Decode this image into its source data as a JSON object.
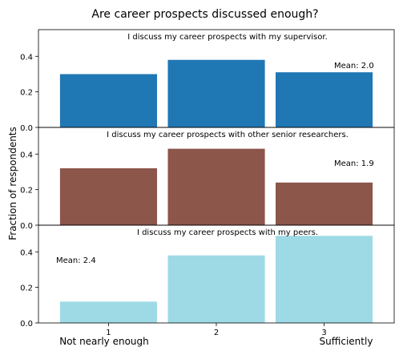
{
  "title": "Are career prospects discussed enough?",
  "ylabel": "Fraction of respondents",
  "x_end_labels": {
    "left": "Not nearly enough",
    "right": "Sufficiently"
  },
  "chart_data": [
    {
      "type": "bar",
      "title": "I discuss my career prospects with my supervisor.",
      "categories": [
        "1",
        "2",
        "3"
      ],
      "values": [
        0.3,
        0.38,
        0.31
      ],
      "color": "#1f77b4",
      "mean_label": "Mean: 2.0",
      "mean_position": "right",
      "ylim": [
        0,
        0.55
      ],
      "yticks": [
        "0.0",
        "0.2",
        "0.4"
      ]
    },
    {
      "type": "bar",
      "title": "I discuss my career prospects with other senior researchers.",
      "categories": [
        "1",
        "2",
        "3"
      ],
      "values": [
        0.32,
        0.43,
        0.24
      ],
      "color": "#8c564b",
      "mean_label": "Mean: 1.9",
      "mean_position": "right",
      "ylim": [
        0,
        0.55
      ],
      "yticks": [
        "0.0",
        "0.2",
        "0.4"
      ]
    },
    {
      "type": "bar",
      "title": "I discuss my career prospects with my peers.",
      "categories": [
        "1",
        "2",
        "3"
      ],
      "values": [
        0.12,
        0.38,
        0.49
      ],
      "color": "#9edae5",
      "mean_label": "Mean: 2.4",
      "mean_position": "left",
      "ylim": [
        0,
        0.55
      ],
      "yticks": [
        "0.0",
        "0.2",
        "0.4"
      ]
    }
  ]
}
